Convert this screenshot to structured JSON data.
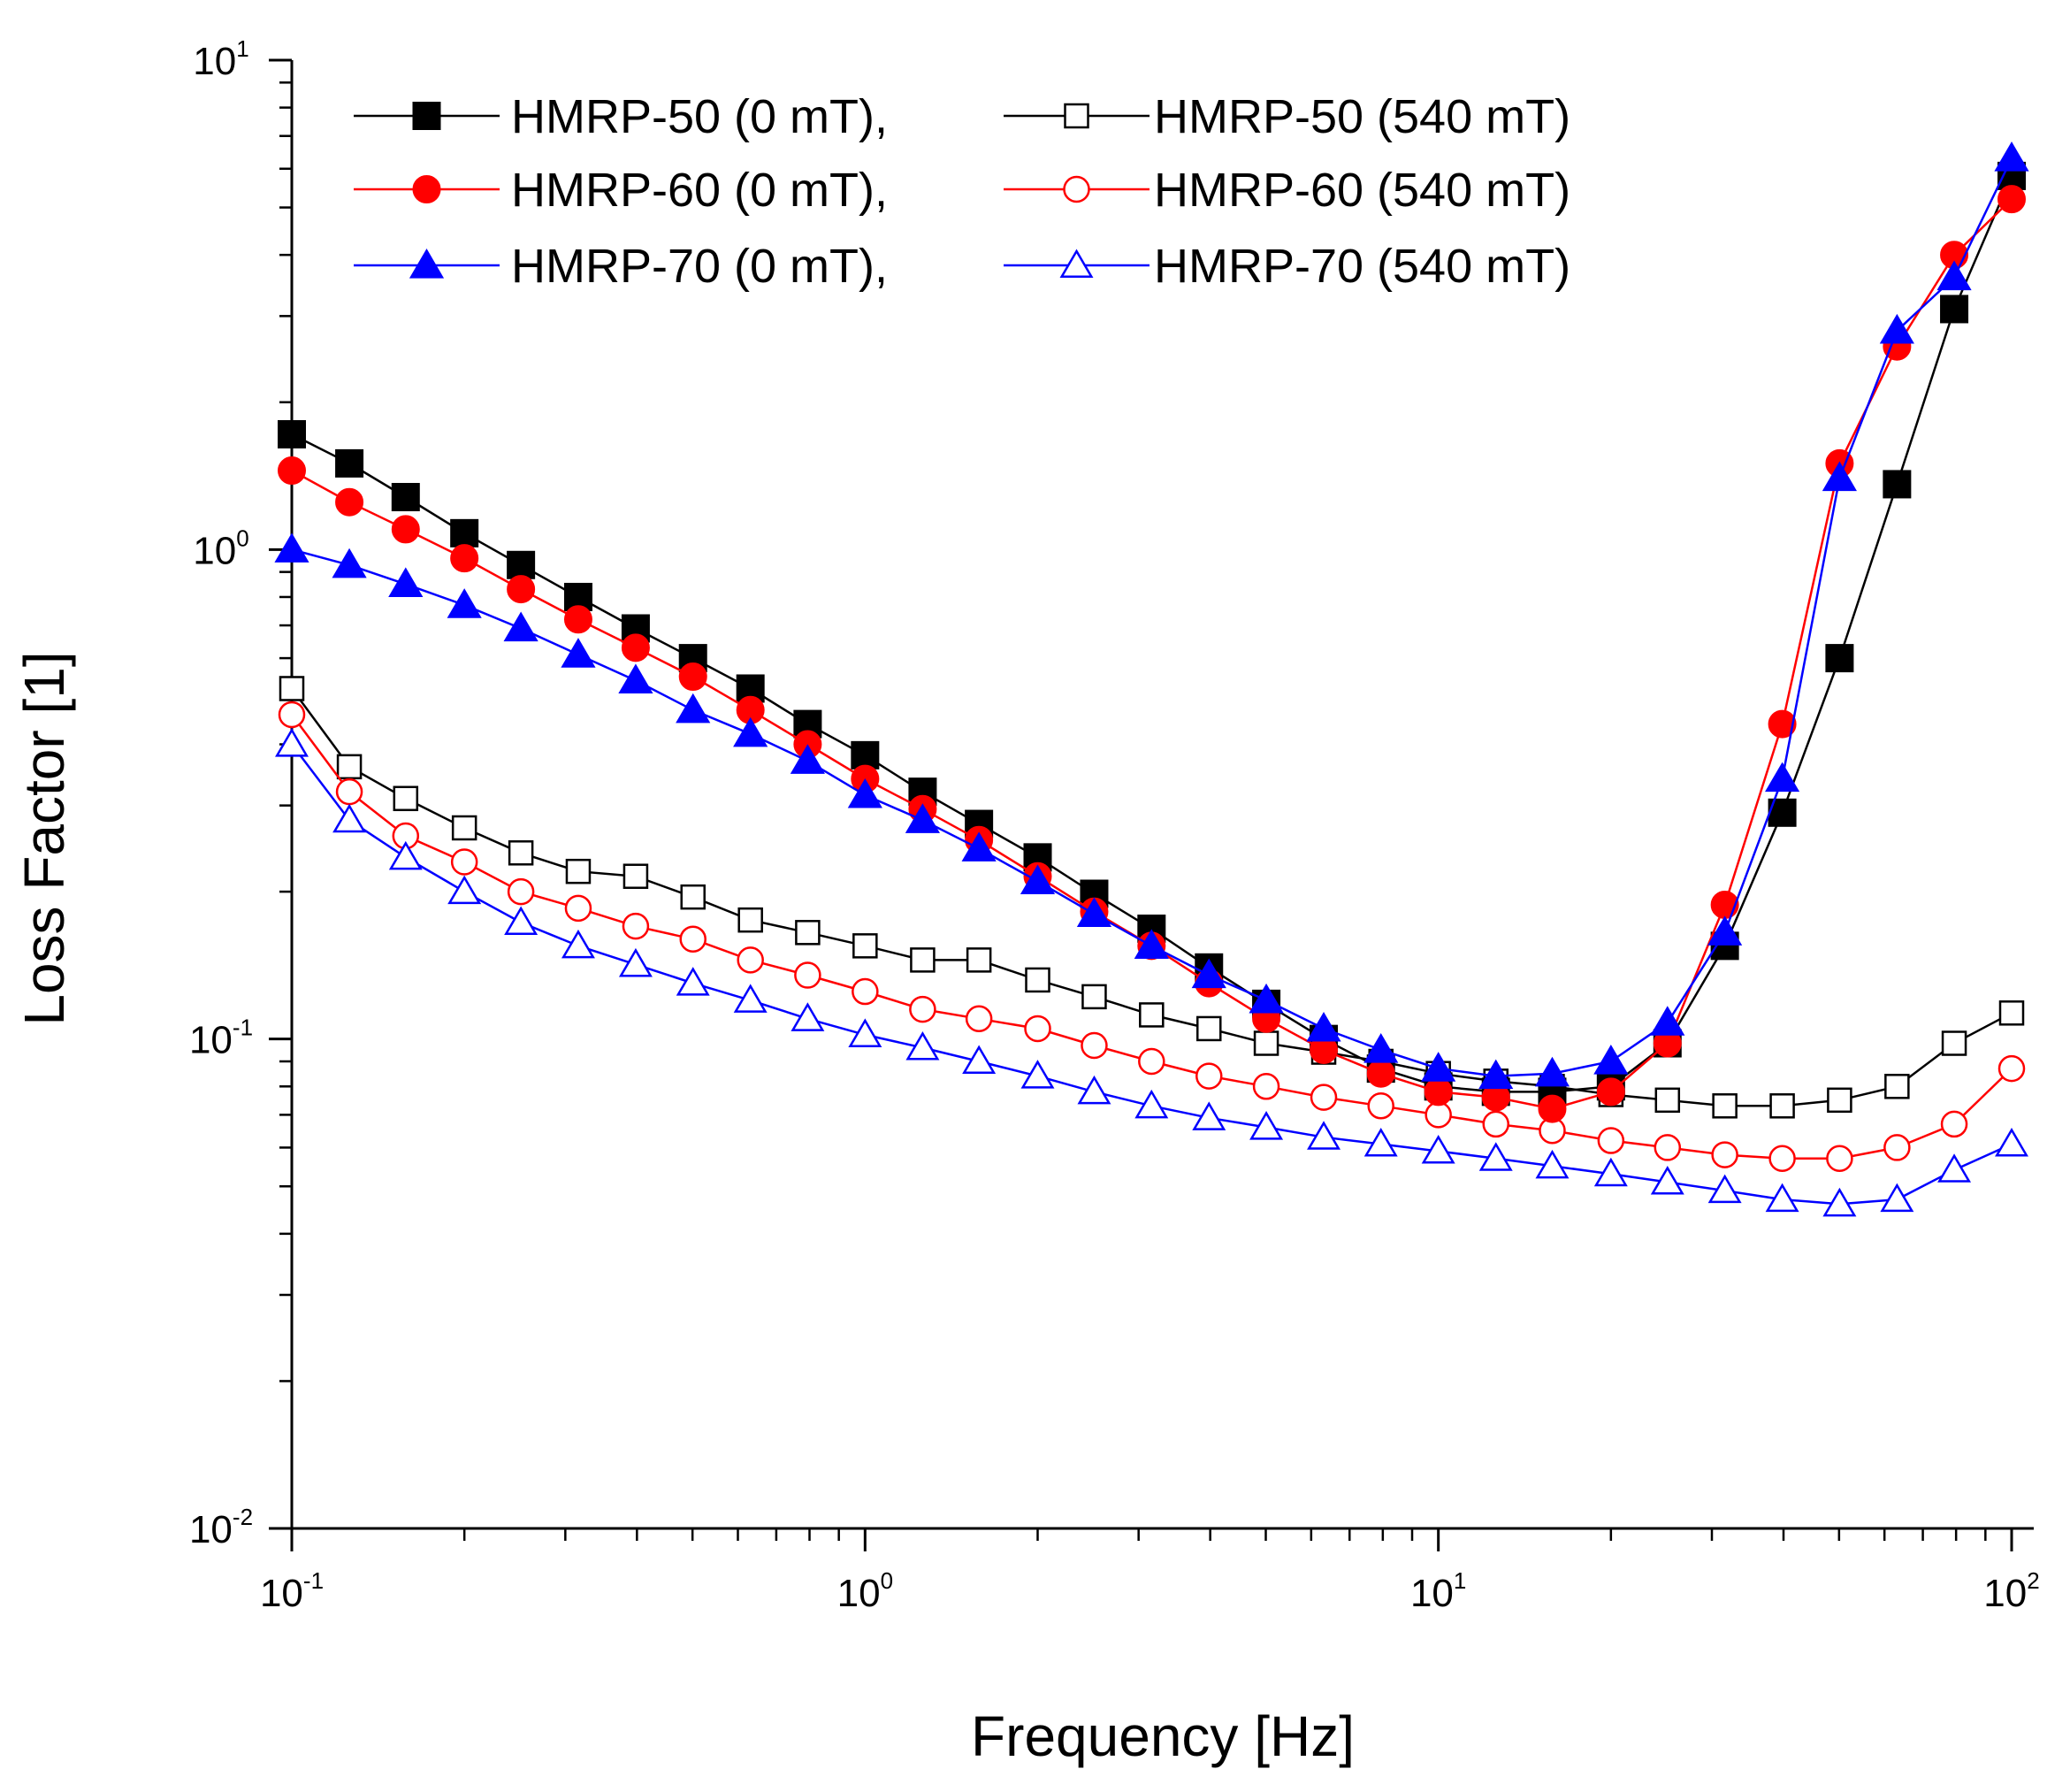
{
  "chart_data": {
    "type": "line",
    "xlabel": "Frequency [Hz]",
    "ylabel": "Loss Factor [1]",
    "x_scale": "log",
    "y_scale": "log",
    "xlim": [
      0.1,
      100
    ],
    "ylim": [
      0.01,
      10
    ],
    "grid": false,
    "legend_position": "top-left",
    "x_ticks": [
      {
        "base": "10",
        "exp": "-1",
        "value": 0.1
      },
      {
        "base": "10",
        "exp": "0",
        "value": 1
      },
      {
        "base": "10",
        "exp": "1",
        "value": 10
      },
      {
        "base": "10",
        "exp": "2",
        "value": 100
      }
    ],
    "y_ticks": [
      {
        "base": "10",
        "exp": "-2",
        "value": 0.01
      },
      {
        "base": "10",
        "exp": "-1",
        "value": 0.1
      },
      {
        "base": "10",
        "exp": "0",
        "value": 1
      },
      {
        "base": "10",
        "exp": "1",
        "value": 10
      }
    ],
    "x": [
      0.1,
      0.126,
      0.158,
      0.2,
      0.251,
      0.316,
      0.398,
      0.501,
      0.631,
      0.794,
      1.0,
      1.26,
      1.58,
      2.0,
      2.51,
      3.16,
      3.98,
      5.01,
      6.31,
      7.94,
      10.0,
      12.6,
      15.8,
      20.0,
      25.1,
      31.6,
      39.8,
      50.1,
      63.1,
      79.4,
      100
    ],
    "series": [
      {
        "name": "HMRP-50 (0 mT),",
        "color": "#000000",
        "marker": "square",
        "filled": true,
        "values": [
          1.72,
          1.5,
          1.28,
          1.08,
          0.93,
          0.8,
          0.69,
          0.6,
          0.52,
          0.44,
          0.38,
          0.32,
          0.275,
          0.235,
          0.198,
          0.168,
          0.14,
          0.118,
          0.1,
          0.087,
          0.08,
          0.078,
          0.078,
          0.08,
          0.098,
          0.155,
          0.29,
          0.6,
          1.36,
          3.1,
          5.8
        ]
      },
      {
        "name": "HMRP-50 (540 mT)",
        "color": "#000000",
        "marker": "square",
        "filled": false,
        "values": [
          0.52,
          0.36,
          0.31,
          0.27,
          0.24,
          0.22,
          0.215,
          0.195,
          0.175,
          0.165,
          0.155,
          0.145,
          0.145,
          0.132,
          0.122,
          0.112,
          0.105,
          0.098,
          0.094,
          0.09,
          0.085,
          0.082,
          0.08,
          0.077,
          0.075,
          0.073,
          0.073,
          0.075,
          0.08,
          0.098,
          0.113
        ]
      },
      {
        "name": "HMRP-60 (0 mT),",
        "color": "#ff0000",
        "marker": "circle",
        "filled": true,
        "values": [
          1.45,
          1.25,
          1.1,
          0.96,
          0.83,
          0.72,
          0.63,
          0.55,
          0.47,
          0.4,
          0.34,
          0.295,
          0.255,
          0.215,
          0.182,
          0.155,
          0.13,
          0.11,
          0.095,
          0.085,
          0.078,
          0.076,
          0.072,
          0.078,
          0.098,
          0.188,
          0.44,
          1.5,
          2.6,
          4.0,
          5.2
        ]
      },
      {
        "name": "HMRP-60 (540 mT)",
        "color": "#ff0000",
        "marker": "circle",
        "filled": false,
        "values": [
          0.46,
          0.32,
          0.26,
          0.23,
          0.2,
          0.185,
          0.17,
          0.16,
          0.145,
          0.135,
          0.125,
          0.115,
          0.11,
          0.105,
          0.097,
          0.09,
          0.084,
          0.08,
          0.076,
          0.073,
          0.07,
          0.067,
          0.065,
          0.062,
          0.06,
          0.058,
          0.057,
          0.057,
          0.06,
          0.067,
          0.087
        ]
      },
      {
        "name": "HMRP-70 (0 mT),",
        "color": "#0000ff",
        "marker": "triangle",
        "filled": true,
        "values": [
          1.0,
          0.93,
          0.85,
          0.77,
          0.69,
          0.61,
          0.54,
          0.47,
          0.42,
          0.37,
          0.315,
          0.28,
          0.245,
          0.21,
          0.18,
          0.155,
          0.135,
          0.12,
          0.105,
          0.095,
          0.087,
          0.084,
          0.085,
          0.09,
          0.108,
          0.165,
          0.34,
          1.4,
          2.8,
          3.6,
          6.3
        ]
      },
      {
        "name": "HMRP-70 (540 mT)",
        "color": "#0000ff",
        "marker": "triangle",
        "filled": false,
        "values": [
          0.4,
          0.28,
          0.235,
          0.2,
          0.173,
          0.155,
          0.142,
          0.13,
          0.12,
          0.11,
          0.102,
          0.096,
          0.09,
          0.084,
          0.078,
          0.073,
          0.069,
          0.066,
          0.063,
          0.061,
          0.059,
          0.057,
          0.055,
          0.053,
          0.051,
          0.049,
          0.047,
          0.046,
          0.047,
          0.054,
          0.061
        ]
      }
    ]
  }
}
